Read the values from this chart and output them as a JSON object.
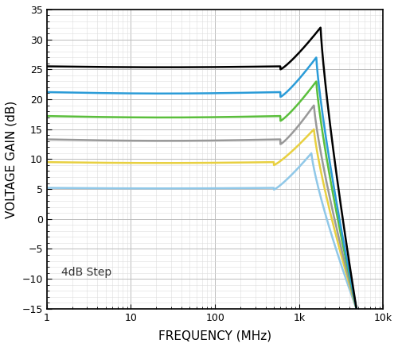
{
  "xlabel": "FREQUENCY (MHz)",
  "ylabel": "VOLTAGE GAIN (dB)",
  "annotation": "4dB Step",
  "xlim": [
    1,
    10000
  ],
  "ylim": [
    -15,
    35
  ],
  "yticks": [
    -15,
    -10,
    -5,
    0,
    5,
    10,
    15,
    20,
    25,
    30,
    35
  ],
  "curves": [
    {
      "color": "#000000",
      "flat_gain": 25.5,
      "dip_depth": 0.5,
      "dip_freq": 600,
      "peak_freq": 1800,
      "peak_gain": 32.0,
      "rolloff_end": 4800
    },
    {
      "color": "#2B9CD8",
      "flat_gain": 21.2,
      "dip_depth": 0.8,
      "dip_freq": 600,
      "peak_freq": 1600,
      "peak_gain": 27.0,
      "rolloff_end": 4800
    },
    {
      "color": "#5BBF3C",
      "flat_gain": 17.2,
      "dip_depth": 0.8,
      "dip_freq": 600,
      "peak_freq": 1600,
      "peak_gain": 23.0,
      "rolloff_end": 4800
    },
    {
      "color": "#999999",
      "flat_gain": 13.3,
      "dip_depth": 0.8,
      "dip_freq": 600,
      "peak_freq": 1500,
      "peak_gain": 19.0,
      "rolloff_end": 4800
    },
    {
      "color": "#E8D040",
      "flat_gain": 9.5,
      "dip_depth": 0.5,
      "dip_freq": 500,
      "peak_freq": 1500,
      "peak_gain": 15.0,
      "rolloff_end": 4800
    },
    {
      "color": "#90C8E8",
      "flat_gain": 5.2,
      "dip_depth": 0.3,
      "dip_freq": 500,
      "peak_freq": 1400,
      "peak_gain": 11.0,
      "rolloff_end": 4800
    }
  ],
  "background_color": "#ffffff",
  "grid_major_color": "#bbbbbb",
  "grid_minor_color": "#dddddd",
  "figsize": [
    5.0,
    4.37
  ],
  "dpi": 100
}
